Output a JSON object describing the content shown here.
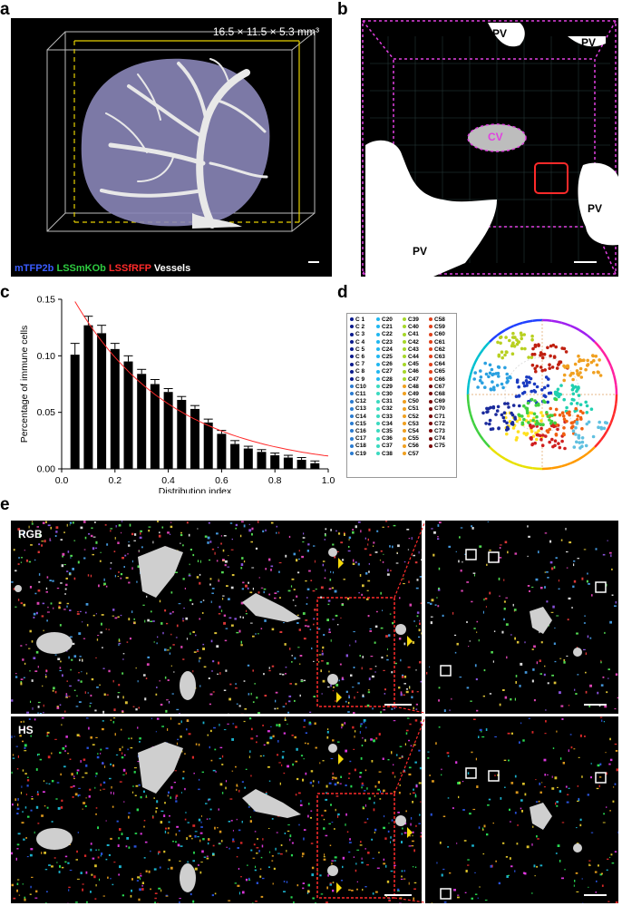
{
  "panel_labels": {
    "a": "a",
    "b": "b",
    "c": "c",
    "d": "d",
    "e": "e"
  },
  "panel_a": {
    "dimensions": "16.5 × 11.5 × 5.3 mm³",
    "channels": [
      {
        "label": "mTFP2b",
        "color": "#3a5cff"
      },
      {
        "label": "LSSmKOb",
        "color": "#2ecc40"
      },
      {
        "label": "LSSfRFP",
        "color": "#ff2a2a"
      },
      {
        "label": "Vessels",
        "color": "#ffffff"
      }
    ]
  },
  "panel_b": {
    "labels": {
      "pv1": "PV",
      "pv2": "PV",
      "pv3": "PV",
      "pv4": "PV",
      "cv": "CV"
    }
  },
  "chart_data": {
    "type": "bar",
    "ylabel": "Percentage of immune cells",
    "xlabel": "Distribution index",
    "xlim": [
      0,
      1.0
    ],
    "ylim": [
      0,
      0.15
    ],
    "xticks": [
      "0.0",
      "0.2",
      "0.4",
      "0.6",
      "0.8",
      "1.0"
    ],
    "yticks": [
      "0.00",
      "0.05",
      "0.10",
      "0.15"
    ],
    "x": [
      0.05,
      0.1,
      0.15,
      0.2,
      0.25,
      0.3,
      0.35,
      0.4,
      0.45,
      0.5,
      0.55,
      0.6,
      0.65,
      0.7,
      0.75,
      0.8,
      0.85,
      0.9,
      0.95
    ],
    "values": [
      0.101,
      0.127,
      0.12,
      0.106,
      0.095,
      0.084,
      0.075,
      0.068,
      0.061,
      0.053,
      0.041,
      0.031,
      0.022,
      0.018,
      0.015,
      0.012,
      0.01,
      0.008,
      0.005
    ],
    "errors": [
      0.01,
      0.008,
      0.007,
      0.005,
      0.005,
      0.004,
      0.004,
      0.003,
      0.003,
      0.003,
      0.003,
      0.003,
      0.003,
      0.002,
      0.002,
      0.002,
      0.002,
      0.002,
      0.002
    ],
    "fit_curve": {
      "color": "#ff2a2a"
    }
  },
  "panel_d": {
    "legend": [
      [
        "C 1",
        "C 2",
        "C 3",
        "C 4",
        "C 5",
        "C 6",
        "C 7",
        "C 8",
        "C 9",
        "C10",
        "C11",
        "C12",
        "C13",
        "C14",
        "C15",
        "C16",
        "C17",
        "C18",
        "C19"
      ],
      [
        "C20",
        "C21",
        "C22",
        "C23",
        "C24",
        "C25",
        "C26",
        "C27",
        "C28",
        "C29",
        "C30",
        "C31",
        "C32",
        "C33",
        "C34",
        "C35",
        "C36",
        "C37",
        "C38"
      ],
      [
        "C39",
        "C40",
        "C41",
        "C42",
        "C43",
        "C44",
        "C45",
        "C46",
        "C47",
        "C48",
        "C49",
        "C50",
        "C51",
        "C52",
        "C53",
        "C54",
        "C55",
        "C56",
        "C57"
      ],
      [
        "C58",
        "C59",
        "C60",
        "C61",
        "C62",
        "C63",
        "C64",
        "C65",
        "C66",
        "C67",
        "C68",
        "C69",
        "C70",
        "C71",
        "C72",
        "C73",
        "C74",
        "C75"
      ]
    ],
    "column_colors": [
      "#1a2a9c",
      "#1ba3e0",
      "#e8c21a",
      "#d43a1a"
    ]
  },
  "panel_e": {
    "rows": [
      {
        "label": "RGB"
      },
      {
        "label": "HS"
      }
    ]
  }
}
